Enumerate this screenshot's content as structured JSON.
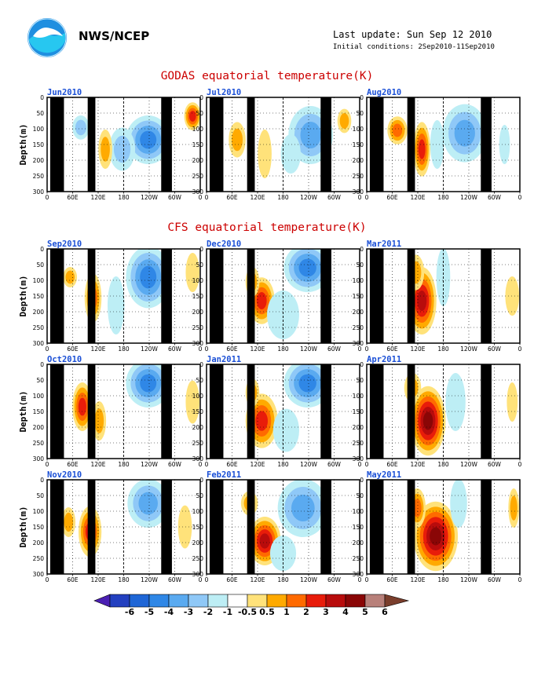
{
  "header": {
    "org": "NWS/NCEP",
    "last_update": "Last update: Sun Sep 12 2010",
    "initial_conditions": "Initial conditions: 2Sep2010-11Sep2010"
  },
  "sections": {
    "godas_title": "GODAS equatorial temperature(K)",
    "cfs_title": "CFS equatorial temperature(K)"
  },
  "chart_data": {
    "type": "heatmap",
    "ylabel": "Depth(m)",
    "x_ticks": [
      "0",
      "60E",
      "120E",
      "180",
      "120W",
      "60W",
      "0"
    ],
    "y_ticks": [
      "0",
      "50",
      "100",
      "150",
      "200",
      "250",
      "300"
    ],
    "ylim": [
      300,
      0
    ],
    "grid": true,
    "colors": {
      "title": "#cc0000",
      "panel_label": "#1a4fd6",
      "land_mask": "#000000"
    },
    "panels": [
      {
        "label": "Jun2010",
        "group": "GODAS",
        "lead": 0
      },
      {
        "label": "Jul2010",
        "group": "GODAS",
        "lead": 0
      },
      {
        "label": "Aug2010",
        "group": "GODAS",
        "lead": 0
      },
      {
        "label": "Sep2010",
        "group": "CFS",
        "lead": 0
      },
      {
        "label": "Dec2010",
        "group": "CFS",
        "lead": 3
      },
      {
        "label": "Mar2011",
        "group": "CFS",
        "lead": 6
      },
      {
        "label": "Oct2010",
        "group": "CFS",
        "lead": 1
      },
      {
        "label": "Jan2011",
        "group": "CFS",
        "lead": 4
      },
      {
        "label": "Apr2011",
        "group": "CFS",
        "lead": 7
      },
      {
        "label": "Nov2010",
        "group": "CFS",
        "lead": 2
      },
      {
        "label": "Feb2011",
        "group": "CFS",
        "lead": 5
      },
      {
        "label": "May2011",
        "group": "CFS",
        "lead": 8
      }
    ],
    "colorbar": {
      "levels": [
        "-6",
        "-5",
        "-4",
        "-3",
        "-2",
        "-1",
        "-0.5",
        "0.5",
        "1",
        "2",
        "3",
        "4",
        "5",
        "6"
      ],
      "colors": [
        "#4b1fb3",
        "#2340c0",
        "#1f66d6",
        "#2f87e6",
        "#5aaaf0",
        "#8fc8f7",
        "#bdeef5",
        "#ffffff",
        "#ffe27a",
        "#ffaa00",
        "#ff6a00",
        "#e81c0a",
        "#b80c0c",
        "#8a0606",
        "#b8807a",
        "#7a3e2c"
      ]
    }
  }
}
